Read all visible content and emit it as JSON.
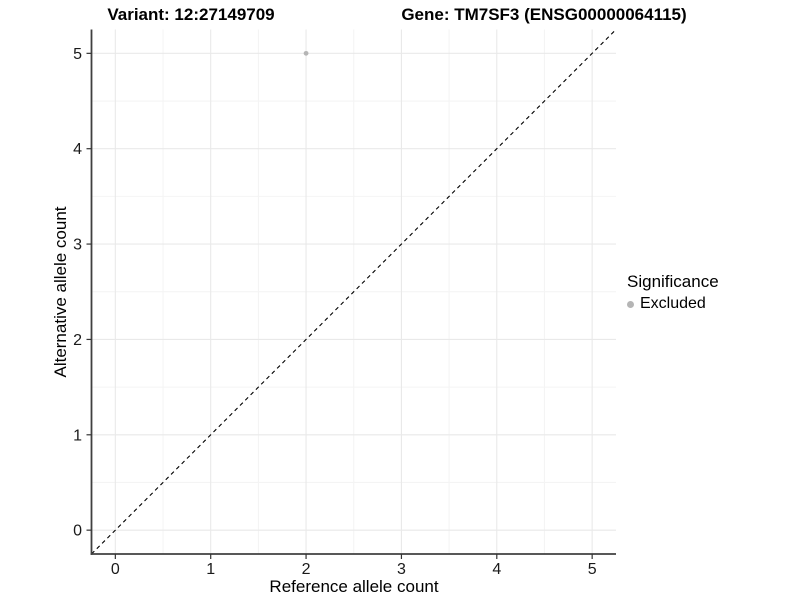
{
  "chart_data": {
    "type": "scatter",
    "title_left": "Variant: 12:27149709",
    "title_right": "Gene: TM7SF3 (ENSG00000064115)",
    "xlabel": "Reference allele count",
    "ylabel": "Alternative allele count",
    "xlim": [
      -0.25,
      5.25
    ],
    "ylim": [
      -0.25,
      5.25
    ],
    "xticks": [
      0,
      1,
      2,
      3,
      4,
      5
    ],
    "yticks": [
      0,
      1,
      2,
      3,
      4,
      5
    ],
    "minor_step": 0.5,
    "grid": true,
    "points": [
      {
        "x": 2,
        "y": 5,
        "significance": "Excluded"
      }
    ],
    "reference_line": {
      "slope": 1,
      "intercept": 0,
      "style": "dashed"
    },
    "legend": {
      "title": "Significance",
      "position": "right",
      "entries": [
        {
          "label": "Excluded",
          "color": "#b5b5b5"
        }
      ]
    },
    "colors": {
      "background": "#ffffff",
      "point": "#b5b5b5",
      "grid_major": "#e9e9e9",
      "grid_minor": "#f4f4f4",
      "axis_line": "#404040",
      "tick_mark": "#333333",
      "tick_label": "#1a1a1a",
      "reference_line": "#000000"
    }
  }
}
